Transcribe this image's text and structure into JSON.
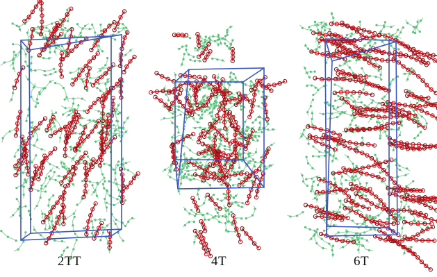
{
  "panels": [
    {
      "label": "2TT"
    },
    {
      "label": "4T"
    },
    {
      "label": "6T"
    }
  ],
  "colors": {
    "box": "#3a55c8",
    "side_chain": "#8fd6a4",
    "side_chain_node": "#5cbf7c",
    "backbone": "#c0141c",
    "backbone_dark": "#8a0d12",
    "background": "#ffffff"
  }
}
